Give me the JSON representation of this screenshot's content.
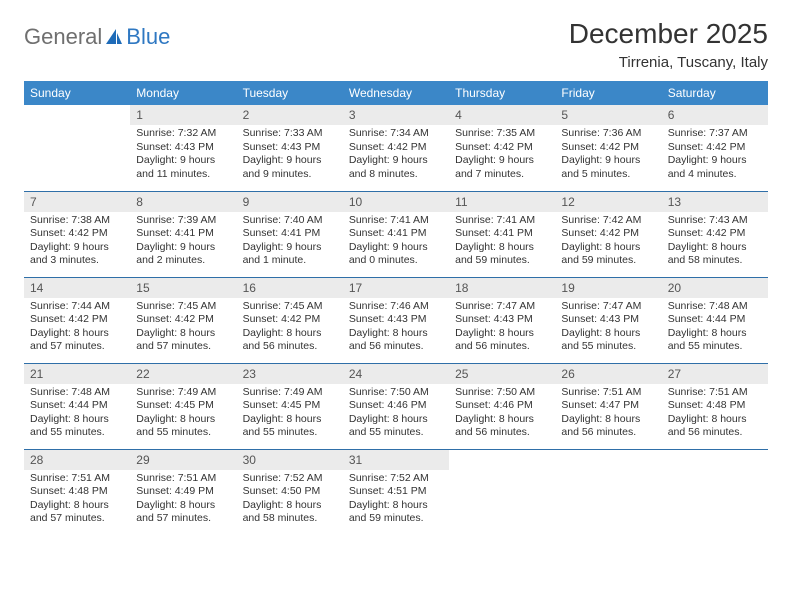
{
  "logo": {
    "text1": "General",
    "text2": "Blue"
  },
  "title": "December 2025",
  "location": "Tirrenia, Tuscany, Italy",
  "colors": {
    "header_bg": "#3b87c8",
    "header_text": "#ffffff",
    "daynum_bg": "#ebebeb",
    "daynum_text": "#555555",
    "body_text": "#333333",
    "rule": "#2f6fa8",
    "logo_gray": "#6f6f6f",
    "logo_blue": "#2f78c2"
  },
  "weekdays": [
    "Sunday",
    "Monday",
    "Tuesday",
    "Wednesday",
    "Thursday",
    "Friday",
    "Saturday"
  ],
  "weeks": [
    [
      null,
      {
        "n": "1",
        "sr": "Sunrise: 7:32 AM",
        "ss": "Sunset: 4:43 PM",
        "dl": "Daylight: 9 hours and 11 minutes."
      },
      {
        "n": "2",
        "sr": "Sunrise: 7:33 AM",
        "ss": "Sunset: 4:43 PM",
        "dl": "Daylight: 9 hours and 9 minutes."
      },
      {
        "n": "3",
        "sr": "Sunrise: 7:34 AM",
        "ss": "Sunset: 4:42 PM",
        "dl": "Daylight: 9 hours and 8 minutes."
      },
      {
        "n": "4",
        "sr": "Sunrise: 7:35 AM",
        "ss": "Sunset: 4:42 PM",
        "dl": "Daylight: 9 hours and 7 minutes."
      },
      {
        "n": "5",
        "sr": "Sunrise: 7:36 AM",
        "ss": "Sunset: 4:42 PM",
        "dl": "Daylight: 9 hours and 5 minutes."
      },
      {
        "n": "6",
        "sr": "Sunrise: 7:37 AM",
        "ss": "Sunset: 4:42 PM",
        "dl": "Daylight: 9 hours and 4 minutes."
      }
    ],
    [
      {
        "n": "7",
        "sr": "Sunrise: 7:38 AM",
        "ss": "Sunset: 4:42 PM",
        "dl": "Daylight: 9 hours and 3 minutes."
      },
      {
        "n": "8",
        "sr": "Sunrise: 7:39 AM",
        "ss": "Sunset: 4:41 PM",
        "dl": "Daylight: 9 hours and 2 minutes."
      },
      {
        "n": "9",
        "sr": "Sunrise: 7:40 AM",
        "ss": "Sunset: 4:41 PM",
        "dl": "Daylight: 9 hours and 1 minute."
      },
      {
        "n": "10",
        "sr": "Sunrise: 7:41 AM",
        "ss": "Sunset: 4:41 PM",
        "dl": "Daylight: 9 hours and 0 minutes."
      },
      {
        "n": "11",
        "sr": "Sunrise: 7:41 AM",
        "ss": "Sunset: 4:41 PM",
        "dl": "Daylight: 8 hours and 59 minutes."
      },
      {
        "n": "12",
        "sr": "Sunrise: 7:42 AM",
        "ss": "Sunset: 4:42 PM",
        "dl": "Daylight: 8 hours and 59 minutes."
      },
      {
        "n": "13",
        "sr": "Sunrise: 7:43 AM",
        "ss": "Sunset: 4:42 PM",
        "dl": "Daylight: 8 hours and 58 minutes."
      }
    ],
    [
      {
        "n": "14",
        "sr": "Sunrise: 7:44 AM",
        "ss": "Sunset: 4:42 PM",
        "dl": "Daylight: 8 hours and 57 minutes."
      },
      {
        "n": "15",
        "sr": "Sunrise: 7:45 AM",
        "ss": "Sunset: 4:42 PM",
        "dl": "Daylight: 8 hours and 57 minutes."
      },
      {
        "n": "16",
        "sr": "Sunrise: 7:45 AM",
        "ss": "Sunset: 4:42 PM",
        "dl": "Daylight: 8 hours and 56 minutes."
      },
      {
        "n": "17",
        "sr": "Sunrise: 7:46 AM",
        "ss": "Sunset: 4:43 PM",
        "dl": "Daylight: 8 hours and 56 minutes."
      },
      {
        "n": "18",
        "sr": "Sunrise: 7:47 AM",
        "ss": "Sunset: 4:43 PM",
        "dl": "Daylight: 8 hours and 56 minutes."
      },
      {
        "n": "19",
        "sr": "Sunrise: 7:47 AM",
        "ss": "Sunset: 4:43 PM",
        "dl": "Daylight: 8 hours and 55 minutes."
      },
      {
        "n": "20",
        "sr": "Sunrise: 7:48 AM",
        "ss": "Sunset: 4:44 PM",
        "dl": "Daylight: 8 hours and 55 minutes."
      }
    ],
    [
      {
        "n": "21",
        "sr": "Sunrise: 7:48 AM",
        "ss": "Sunset: 4:44 PM",
        "dl": "Daylight: 8 hours and 55 minutes."
      },
      {
        "n": "22",
        "sr": "Sunrise: 7:49 AM",
        "ss": "Sunset: 4:45 PM",
        "dl": "Daylight: 8 hours and 55 minutes."
      },
      {
        "n": "23",
        "sr": "Sunrise: 7:49 AM",
        "ss": "Sunset: 4:45 PM",
        "dl": "Daylight: 8 hours and 55 minutes."
      },
      {
        "n": "24",
        "sr": "Sunrise: 7:50 AM",
        "ss": "Sunset: 4:46 PM",
        "dl": "Daylight: 8 hours and 55 minutes."
      },
      {
        "n": "25",
        "sr": "Sunrise: 7:50 AM",
        "ss": "Sunset: 4:46 PM",
        "dl": "Daylight: 8 hours and 56 minutes."
      },
      {
        "n": "26",
        "sr": "Sunrise: 7:51 AM",
        "ss": "Sunset: 4:47 PM",
        "dl": "Daylight: 8 hours and 56 minutes."
      },
      {
        "n": "27",
        "sr": "Sunrise: 7:51 AM",
        "ss": "Sunset: 4:48 PM",
        "dl": "Daylight: 8 hours and 56 minutes."
      }
    ],
    [
      {
        "n": "28",
        "sr": "Sunrise: 7:51 AM",
        "ss": "Sunset: 4:48 PM",
        "dl": "Daylight: 8 hours and 57 minutes."
      },
      {
        "n": "29",
        "sr": "Sunrise: 7:51 AM",
        "ss": "Sunset: 4:49 PM",
        "dl": "Daylight: 8 hours and 57 minutes."
      },
      {
        "n": "30",
        "sr": "Sunrise: 7:52 AM",
        "ss": "Sunset: 4:50 PM",
        "dl": "Daylight: 8 hours and 58 minutes."
      },
      {
        "n": "31",
        "sr": "Sunrise: 7:52 AM",
        "ss": "Sunset: 4:51 PM",
        "dl": "Daylight: 8 hours and 59 minutes."
      },
      null,
      null,
      null
    ]
  ]
}
